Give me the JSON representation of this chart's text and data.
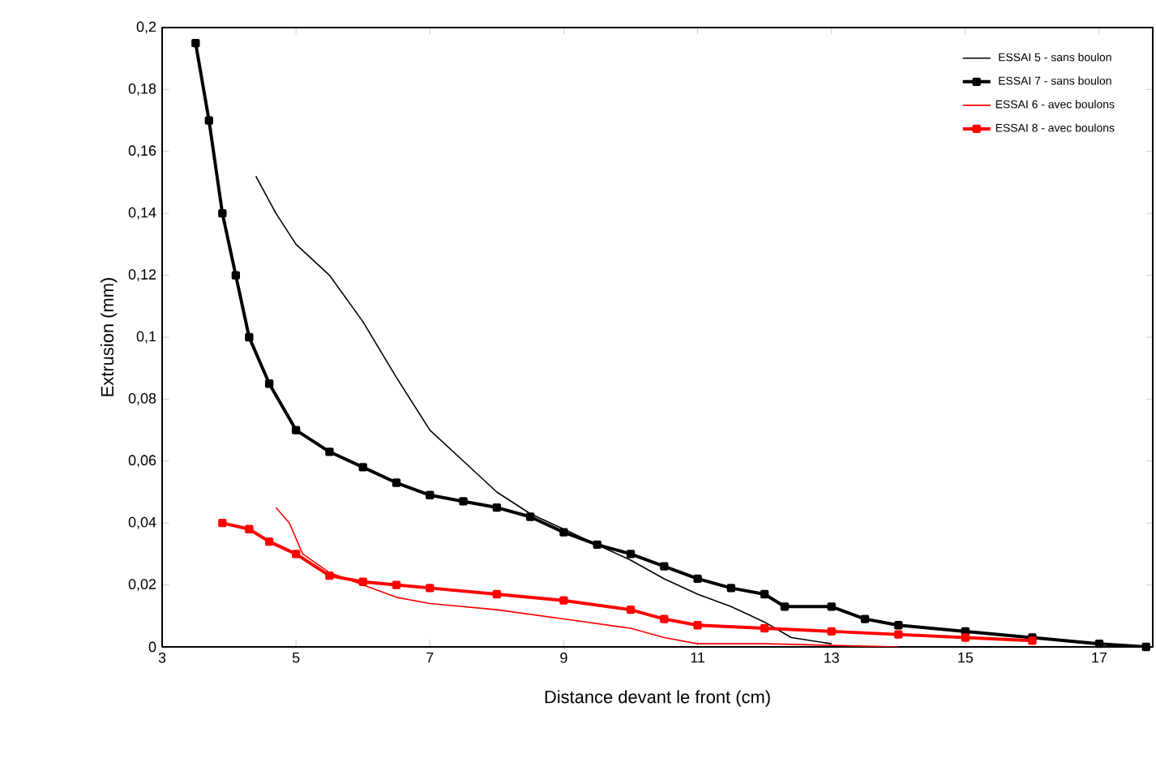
{
  "chart_data": {
    "type": "line",
    "xlabel": "Distance devant le front (cm)",
    "ylabel": "Extrusion (mm)",
    "xlim": [
      3,
      17.8
    ],
    "xticks": [
      3,
      5,
      7,
      9,
      11,
      13,
      15,
      17
    ],
    "ylim": [
      0,
      0.2
    ],
    "yticks": [
      0,
      {
        "value": 0.02,
        "label": "0,02"
      },
      {
        "value": 0.04,
        "label": "0,04"
      },
      {
        "value": 0.06,
        "label": "0,06"
      },
      {
        "value": 0.08,
        "label": "0,08"
      },
      {
        "value": 0.1,
        "label": "0,1"
      },
      {
        "value": 0.12,
        "label": "0,12"
      },
      {
        "value": 0.14,
        "label": "0,14"
      },
      {
        "value": 0.16,
        "label": "0,16"
      },
      {
        "value": 0.18,
        "label": "0,18"
      },
      {
        "value": 0.2,
        "label": "0,2"
      }
    ],
    "grid": false,
    "legend": "top right",
    "line_style": "solid",
    "series": [
      {
        "name": "ESSAI 5 - sans boulon",
        "color": "#000000",
        "marker": "none",
        "x": [
          4.4,
          4.7,
          5,
          5.5,
          6,
          6.5,
          7,
          7.5,
          8,
          8.5,
          9,
          9.5,
          10,
          10.5,
          11,
          11.5,
          12,
          12.4,
          13
        ],
        "values": [
          0.152,
          0.14,
          0.13,
          0.12,
          0.105,
          0.087,
          0.07,
          0.06,
          0.05,
          0.043,
          0.038,
          0.033,
          0.028,
          0.022,
          0.017,
          0.013,
          0.008,
          0.003,
          0.001
        ]
      },
      {
        "name": "ESSAI 7 - sans boulon",
        "color": "#000000",
        "marker": "square",
        "x": [
          3.5,
          3.7,
          3.9,
          4.1,
          4.3,
          4.6,
          5,
          5.5,
          6,
          6.5,
          7,
          7.5,
          8,
          8.5,
          9,
          9.5,
          10,
          10.5,
          11,
          11.5,
          12,
          12.3,
          13,
          13.5,
          14,
          15,
          16,
          17,
          17.7
        ],
        "values": [
          0.195,
          0.17,
          0.14,
          0.12,
          0.1,
          0.085,
          0.07,
          0.063,
          0.058,
          0.053,
          0.049,
          0.047,
          0.045,
          0.042,
          0.037,
          0.033,
          0.03,
          0.026,
          0.022,
          0.019,
          0.017,
          0.013,
          0.013,
          0.009,
          0.007,
          0.005,
          0.003,
          0.001,
          0
        ]
      },
      {
        "name": "ESSAI 6 - avec boulons",
        "color": "#ff0000",
        "marker": "none",
        "x": [
          4.7,
          4.9,
          5.1,
          5.5,
          6,
          6.5,
          7,
          8,
          9,
          10,
          10.5,
          11,
          12,
          14
        ],
        "values": [
          0.045,
          0.04,
          0.03,
          0.024,
          0.02,
          0.016,
          0.014,
          0.012,
          0.009,
          0.006,
          0.003,
          0.001,
          0.001,
          0
        ]
      },
      {
        "name": "ESSAI 8 - avec boulons",
        "color": "#ff0000",
        "marker": "square",
        "x": [
          3.9,
          4.3,
          4.6,
          5,
          5.5,
          6,
          6.5,
          7,
          8,
          9,
          10,
          10.5,
          11,
          12,
          13,
          14,
          15,
          16
        ],
        "values": [
          0.04,
          0.038,
          0.034,
          0.03,
          0.023,
          0.021,
          0.02,
          0.019,
          0.017,
          0.015,
          0.012,
          0.009,
          0.007,
          0.006,
          0.005,
          0.004,
          0.003,
          0.002
        ]
      }
    ]
  }
}
